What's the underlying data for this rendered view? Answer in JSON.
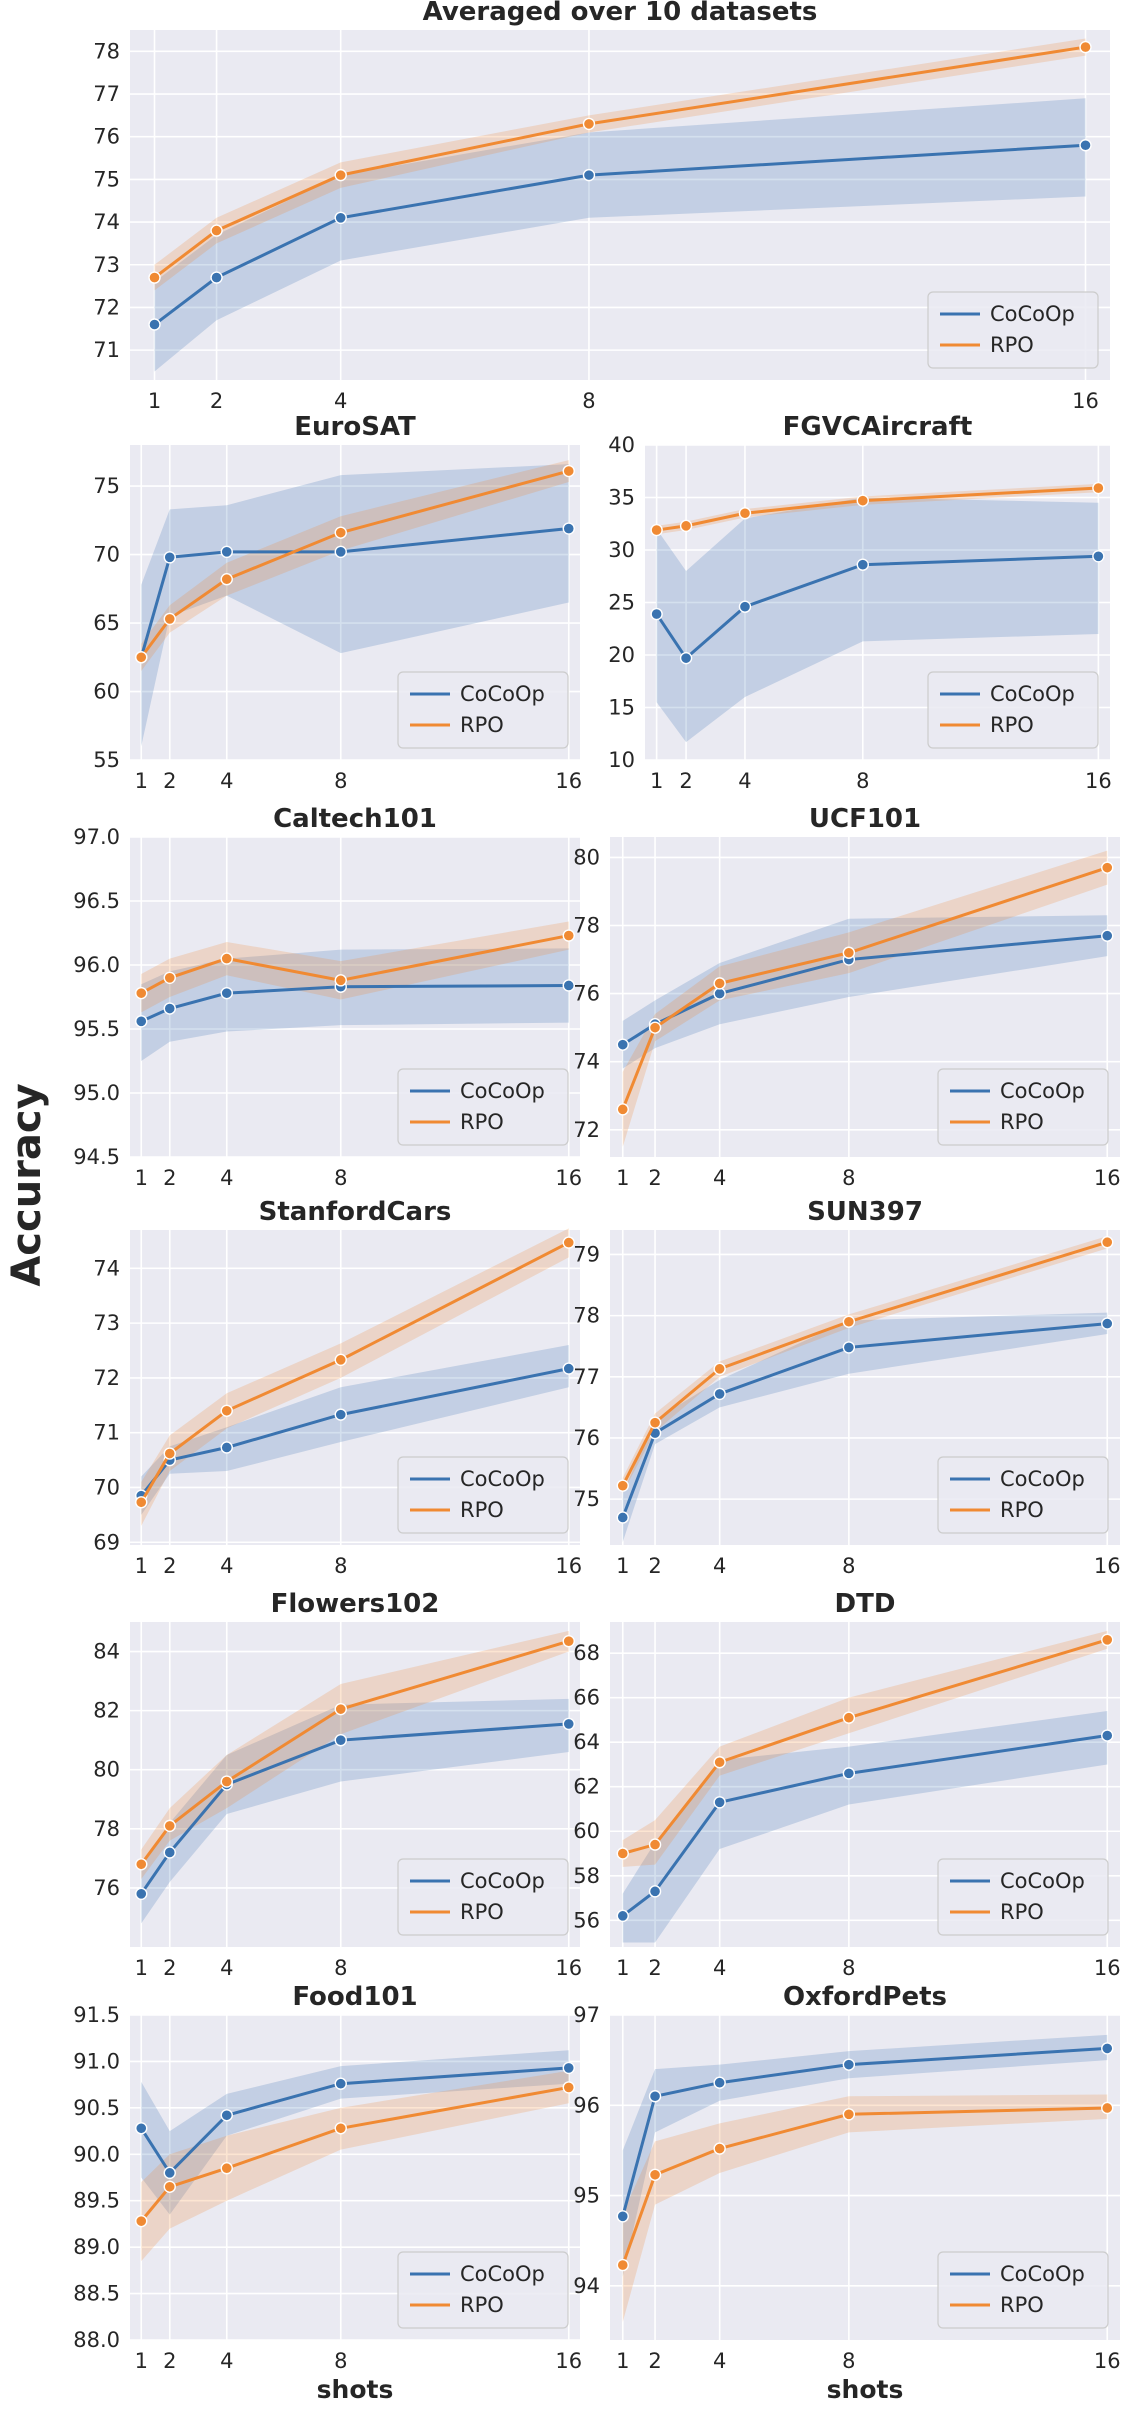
{
  "figure": {
    "ylabel": "Accuracy",
    "xlabel": "shots"
  },
  "colors": {
    "cocoop": "#3a73b0",
    "rpo": "#f08a33",
    "plot_bg": "#eaeaf2",
    "grid": "#ffffff"
  },
  "chart_data": [
    {
      "type": "line",
      "title": "Averaged over 10 datasets",
      "x": [
        1,
        2,
        4,
        8,
        16
      ],
      "xticks": [
        "1",
        "2",
        "4",
        "8",
        "16"
      ],
      "ylim": [
        70.3,
        78.5
      ],
      "yticks": [
        71,
        72,
        73,
        74,
        75,
        76,
        77,
        78
      ],
      "yticklabels": [
        "71",
        "72",
        "73",
        "74",
        "75",
        "76",
        "77",
        "78"
      ],
      "legend_position": "bottom-right",
      "xlabel": "",
      "series": [
        {
          "name": "CoCoOp",
          "values": [
            71.6,
            72.7,
            74.1,
            75.1,
            75.8
          ],
          "lower": [
            70.5,
            71.7,
            73.1,
            74.1,
            74.6
          ],
          "upper": [
            72.6,
            73.7,
            75.1,
            76.1,
            76.9
          ]
        },
        {
          "name": "RPO",
          "values": [
            72.7,
            73.8,
            75.1,
            76.3,
            78.1
          ],
          "lower": [
            72.4,
            73.5,
            74.8,
            76.1,
            77.9
          ],
          "upper": [
            73.0,
            74.1,
            75.4,
            76.5,
            78.3
          ]
        }
      ]
    },
    {
      "type": "line",
      "title": "EuroSAT",
      "x": [
        1,
        2,
        4,
        8,
        16
      ],
      "xticks": [
        "1",
        "2",
        "4",
        "8",
        "16"
      ],
      "ylim": [
        55,
        78
      ],
      "yticks": [
        55,
        60,
        65,
        70,
        75
      ],
      "yticklabels": [
        "55",
        "60",
        "65",
        "70",
        "75"
      ],
      "legend_position": "bottom-right",
      "xlabel": "",
      "series": [
        {
          "name": "CoCoOp",
          "values": [
            62.5,
            69.8,
            70.2,
            70.2,
            71.9
          ],
          "lower": [
            56.0,
            65.5,
            67.0,
            62.8,
            66.5
          ],
          "upper": [
            67.8,
            73.3,
            73.6,
            75.8,
            76.6
          ]
        },
        {
          "name": "RPO",
          "values": [
            62.5,
            65.3,
            68.2,
            71.6,
            76.1
          ],
          "lower": [
            61.5,
            64.3,
            67.0,
            70.3,
            75.3
          ],
          "upper": [
            63.5,
            66.3,
            69.4,
            72.8,
            76.9
          ]
        }
      ]
    },
    {
      "type": "line",
      "title": "FGVCAircraft",
      "x": [
        1,
        2,
        4,
        8,
        16
      ],
      "xticks": [
        "1",
        "2",
        "4",
        "8",
        "16"
      ],
      "ylim": [
        10,
        40
      ],
      "yticks": [
        10,
        15,
        20,
        25,
        30,
        35,
        40
      ],
      "yticklabels": [
        "10",
        "15",
        "20",
        "25",
        "30",
        "35",
        "40"
      ],
      "legend_position": "bottom-right",
      "xlabel": "",
      "series": [
        {
          "name": "CoCoOp",
          "values": [
            23.9,
            19.7,
            24.6,
            28.6,
            29.4
          ],
          "lower": [
            15.5,
            11.7,
            16.0,
            21.3,
            22.0
          ],
          "upper": [
            32.0,
            28.0,
            33.0,
            35.0,
            34.5
          ]
        },
        {
          "name": "RPO",
          "values": [
            31.9,
            32.3,
            33.5,
            34.7,
            35.9
          ],
          "lower": [
            31.5,
            31.9,
            33.1,
            34.3,
            35.5
          ],
          "upper": [
            32.3,
            32.7,
            33.9,
            35.1,
            36.3
          ]
        }
      ]
    },
    {
      "type": "line",
      "title": "Caltech101",
      "x": [
        1,
        2,
        4,
        8,
        16
      ],
      "xticks": [
        "1",
        "2",
        "4",
        "8",
        "16"
      ],
      "ylim": [
        94.5,
        97.0
      ],
      "yticks": [
        94.5,
        95.0,
        95.5,
        96.0,
        96.5,
        97.0
      ],
      "yticklabels": [
        "94.5",
        "95.0",
        "95.5",
        "96.0",
        "96.5",
        "97.0"
      ],
      "legend_position": "bottom-right",
      "xlabel": "",
      "series": [
        {
          "name": "CoCoOp",
          "values": [
            95.56,
            95.66,
            95.78,
            95.83,
            95.84
          ],
          "lower": [
            95.25,
            95.4,
            95.48,
            95.53,
            95.55
          ],
          "upper": [
            95.85,
            95.95,
            96.05,
            96.12,
            96.13
          ]
        },
        {
          "name": "RPO",
          "values": [
            95.78,
            95.9,
            96.05,
            95.88,
            96.23
          ],
          "lower": [
            95.63,
            95.75,
            95.92,
            95.73,
            96.12
          ],
          "upper": [
            95.93,
            96.05,
            96.18,
            96.03,
            96.34
          ]
        }
      ]
    },
    {
      "type": "line",
      "title": "UCF101",
      "x": [
        1,
        2,
        4,
        8,
        16
      ],
      "xticks": [
        "1",
        "2",
        "4",
        "8",
        "16"
      ],
      "ylim": [
        71.2,
        80.6
      ],
      "yticks": [
        72,
        74,
        76,
        78,
        80
      ],
      "yticklabels": [
        "72",
        "74",
        "76",
        "78",
        "80"
      ],
      "legend_position": "bottom-right",
      "xlabel": "",
      "series": [
        {
          "name": "CoCoOp",
          "values": [
            74.5,
            75.1,
            76.0,
            77.0,
            77.7
          ],
          "lower": [
            73.8,
            74.4,
            75.1,
            75.9,
            77.1
          ],
          "upper": [
            75.2,
            75.8,
            76.9,
            78.2,
            78.3
          ]
        },
        {
          "name": "RPO",
          "values": [
            72.6,
            75.0,
            76.3,
            77.2,
            79.7
          ],
          "lower": [
            71.5,
            74.6,
            75.8,
            76.6,
            79.2
          ],
          "upper": [
            73.7,
            75.4,
            76.8,
            77.8,
            80.2
          ]
        }
      ]
    },
    {
      "type": "line",
      "title": "StanfordCars",
      "x": [
        1,
        2,
        4,
        8,
        16
      ],
      "xticks": [
        "1",
        "2",
        "4",
        "8",
        "16"
      ],
      "ylim": [
        68.95,
        74.7
      ],
      "yticks": [
        69,
        70,
        71,
        72,
        73,
        74
      ],
      "yticklabels": [
        "69",
        "70",
        "71",
        "72",
        "73",
        "74"
      ],
      "legend_position": "bottom-right",
      "xlabel": "",
      "series": [
        {
          "name": "CoCoOp",
          "values": [
            69.85,
            70.5,
            70.73,
            71.33,
            72.17
          ],
          "lower": [
            69.5,
            70.25,
            70.3,
            70.83,
            71.83
          ],
          "upper": [
            70.2,
            70.75,
            71.1,
            71.83,
            72.6
          ]
        },
        {
          "name": "RPO",
          "values": [
            69.73,
            70.62,
            71.4,
            72.33,
            74.47
          ],
          "lower": [
            69.3,
            70.3,
            71.08,
            72.0,
            74.2
          ],
          "upper": [
            70.1,
            70.95,
            71.72,
            72.63,
            74.73
          ]
        }
      ]
    },
    {
      "type": "line",
      "title": "SUN397",
      "x": [
        1,
        2,
        4,
        8,
        16
      ],
      "xticks": [
        "1",
        "2",
        "4",
        "8",
        "16"
      ],
      "ylim": [
        74.25,
        79.4
      ],
      "yticks": [
        75,
        76,
        77,
        78,
        79
      ],
      "yticklabels": [
        "75",
        "76",
        "77",
        "78",
        "79"
      ],
      "legend_position": "bottom-right",
      "xlabel": "",
      "series": [
        {
          "name": "CoCoOp",
          "values": [
            74.7,
            76.08,
            76.72,
            77.48,
            77.87
          ],
          "lower": [
            74.3,
            75.9,
            76.5,
            77.05,
            77.7
          ],
          "upper": [
            75.1,
            76.3,
            76.95,
            77.92,
            78.05
          ]
        },
        {
          "name": "RPO",
          "values": [
            75.22,
            76.25,
            77.13,
            77.9,
            79.2
          ],
          "lower": [
            75.1,
            76.1,
            77.0,
            77.8,
            79.1
          ],
          "upper": [
            75.35,
            76.4,
            77.25,
            78.02,
            79.3
          ]
        }
      ]
    },
    {
      "type": "line",
      "title": "Flowers102",
      "x": [
        1,
        2,
        4,
        8,
        16
      ],
      "xticks": [
        "1",
        "2",
        "4",
        "8",
        "16"
      ],
      "ylim": [
        74.0,
        85.0
      ],
      "yticks": [
        76,
        78,
        80,
        82,
        84
      ],
      "yticklabels": [
        "76",
        "78",
        "80",
        "82",
        "84"
      ],
      "legend_position": "bottom-right",
      "xlabel": "",
      "series": [
        {
          "name": "CoCoOp",
          "values": [
            75.8,
            77.2,
            79.5,
            81.0,
            81.55
          ],
          "lower": [
            74.8,
            76.2,
            78.5,
            79.6,
            80.6
          ],
          "upper": [
            76.8,
            78.2,
            80.5,
            82.2,
            82.4
          ]
        },
        {
          "name": "RPO",
          "values": [
            76.8,
            78.1,
            79.6,
            82.05,
            84.35
          ],
          "lower": [
            76.3,
            77.6,
            78.7,
            81.2,
            84.0
          ],
          "upper": [
            77.3,
            78.7,
            80.5,
            82.9,
            84.7
          ]
        }
      ]
    },
    {
      "type": "line",
      "title": "DTD",
      "x": [
        1,
        2,
        4,
        8,
        16
      ],
      "xticks": [
        "1",
        "2",
        "4",
        "8",
        "16"
      ],
      "ylim": [
        54.8,
        69.4
      ],
      "yticks": [
        56,
        58,
        60,
        62,
        64,
        66,
        68
      ],
      "yticklabels": [
        "56",
        "58",
        "60",
        "62",
        "64",
        "66",
        "68"
      ],
      "legend_position": "bottom-right",
      "xlabel": "",
      "series": [
        {
          "name": "CoCoOp",
          "values": [
            56.2,
            57.3,
            61.3,
            62.6,
            64.3
          ],
          "lower": [
            55.0,
            55.0,
            59.2,
            61.2,
            63.0
          ],
          "upper": [
            57.2,
            59.5,
            63.2,
            63.8,
            65.4
          ]
        },
        {
          "name": "RPO",
          "values": [
            59.0,
            59.4,
            63.1,
            65.1,
            68.6
          ],
          "lower": [
            58.4,
            58.5,
            62.5,
            64.4,
            68.2
          ],
          "upper": [
            59.6,
            60.5,
            63.8,
            66.0,
            69.0
          ]
        }
      ]
    },
    {
      "type": "line",
      "title": "Food101",
      "x": [
        1,
        2,
        4,
        8,
        16
      ],
      "xticks": [
        "1",
        "2",
        "4",
        "8",
        "16"
      ],
      "ylim": [
        88.0,
        91.5
      ],
      "yticks": [
        88.0,
        88.5,
        89.0,
        89.5,
        90.0,
        90.5,
        91.0,
        91.5
      ],
      "yticklabels": [
        "88.0",
        "88.5",
        "89.0",
        "89.5",
        "90.0",
        "90.5",
        "91.0",
        "91.5"
      ],
      "legend_position": "bottom-right",
      "xlabel": "shots",
      "series": [
        {
          "name": "CoCoOp",
          "values": [
            90.28,
            89.8,
            90.42,
            90.76,
            90.93
          ],
          "lower": [
            89.75,
            89.35,
            90.2,
            90.6,
            90.76
          ],
          "upper": [
            90.78,
            90.25,
            90.65,
            90.95,
            91.12
          ]
        },
        {
          "name": "RPO",
          "values": [
            89.28,
            89.65,
            89.85,
            90.28,
            90.72
          ],
          "lower": [
            88.85,
            89.2,
            89.5,
            90.05,
            90.55
          ],
          "upper": [
            89.7,
            90.0,
            90.2,
            90.5,
            90.9
          ]
        }
      ]
    },
    {
      "type": "line",
      "title": "OxfordPets",
      "x": [
        1,
        2,
        4,
        8,
        16
      ],
      "xticks": [
        "1",
        "2",
        "4",
        "8",
        "16"
      ],
      "ylim": [
        93.4,
        97.0
      ],
      "yticks": [
        94,
        95,
        96,
        97
      ],
      "yticklabels": [
        "94",
        "95",
        "96",
        "97"
      ],
      "legend_position": "bottom-right",
      "xlabel": "shots",
      "series": [
        {
          "name": "CoCoOp",
          "values": [
            94.77,
            96.1,
            96.25,
            96.45,
            96.63
          ],
          "lower": [
            94.1,
            95.7,
            96.05,
            96.3,
            96.5
          ],
          "upper": [
            95.5,
            96.4,
            96.45,
            96.6,
            96.78
          ]
        },
        {
          "name": "RPO",
          "values": [
            94.23,
            95.23,
            95.52,
            95.9,
            95.97
          ],
          "lower": [
            93.6,
            94.9,
            95.25,
            95.7,
            95.85
          ],
          "upper": [
            94.8,
            95.6,
            95.8,
            96.1,
            96.12
          ]
        }
      ]
    }
  ]
}
